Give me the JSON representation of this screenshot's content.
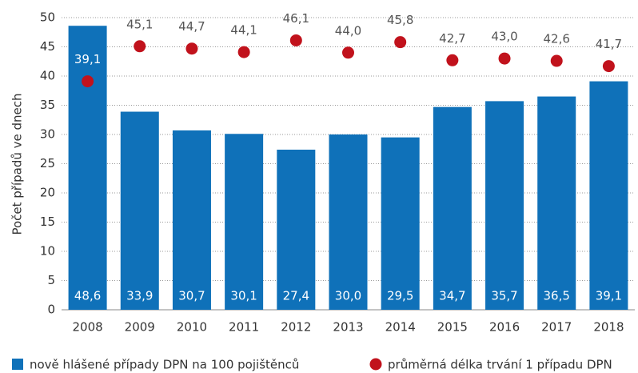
{
  "chart_data": {
    "type": "bar",
    "y_label": "Počet případů ve dnech",
    "categories": [
      "2008",
      "2009",
      "2010",
      "2011",
      "2012",
      "2013",
      "2014",
      "2015",
      "2016",
      "2017",
      "2018"
    ],
    "series": [
      {
        "name": "nově hlášené případy DPN na 100 pojištěnců",
        "type": "bar",
        "color": "#0f71b9",
        "values": [
          48.6,
          33.9,
          30.7,
          30.1,
          27.4,
          30.0,
          29.5,
          34.7,
          35.7,
          36.5,
          39.1
        ],
        "value_labels": [
          "48,6",
          "33,9",
          "30,7",
          "30,1",
          "27,4",
          "30,0",
          "29,5",
          "34,7",
          "35,7",
          "36,5",
          "39,1"
        ]
      },
      {
        "name": "průměrná délka trvání 1 případu DPN",
        "type": "scatter",
        "color": "#c1121c",
        "values": [
          39.1,
          45.1,
          44.7,
          44.1,
          46.1,
          44.0,
          45.8,
          42.7,
          43.0,
          42.6,
          41.7
        ],
        "value_labels": [
          "39,1",
          "45,1",
          "44,7",
          "44,1",
          "46,1",
          "44,0",
          "45,8",
          "42,7",
          "43,0",
          "42,6",
          "41,7"
        ]
      }
    ],
    "ylim": [
      0,
      50
    ],
    "yticks": [
      0,
      5,
      10,
      15,
      20,
      25,
      30,
      35,
      40,
      45,
      50
    ],
    "grid": true
  }
}
